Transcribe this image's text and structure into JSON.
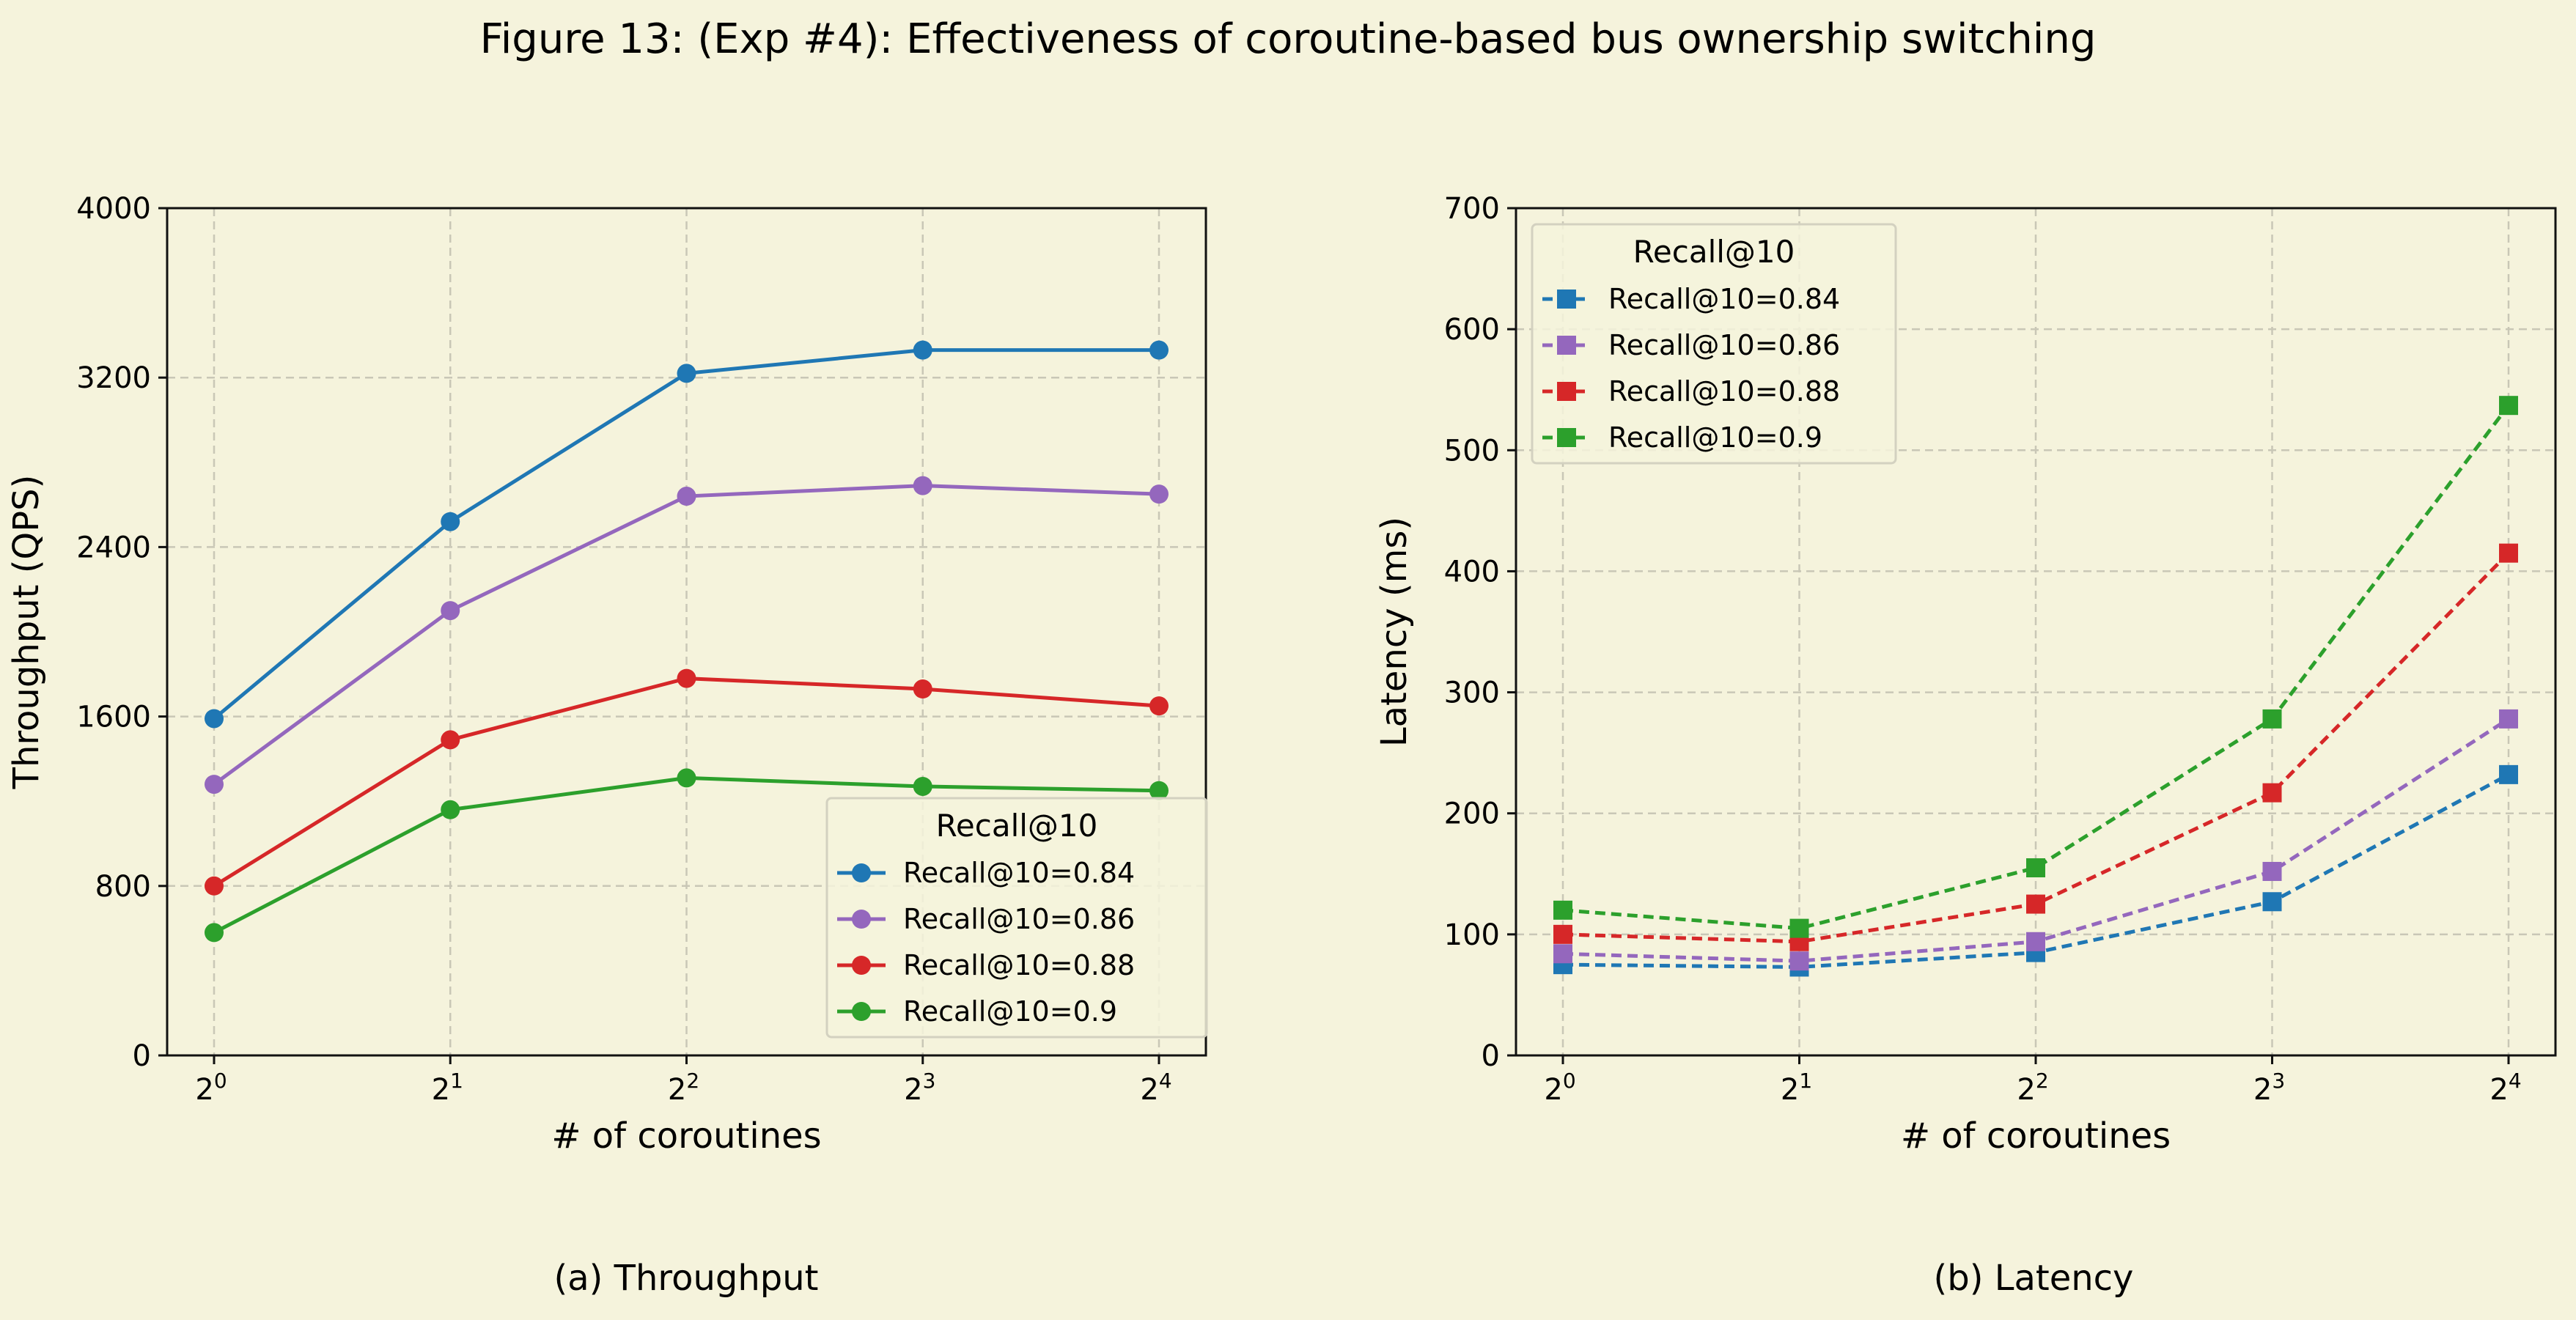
{
  "figure": {
    "title": "Figure 13: (Exp #4): Effectiveness of coroutine-based bus ownership switching",
    "background": "#f5f3dc"
  },
  "chart_data": [
    {
      "type": "line",
      "caption": "(a) Throughput",
      "xlabel": "# of coroutines",
      "ylabel": "Throughput (QPS)",
      "x_scale": "log2",
      "x": [
        1,
        2,
        4,
        8,
        16
      ],
      "x_tick_labels": [
        {
          "base": "2",
          "exp": "0"
        },
        {
          "base": "2",
          "exp": "1"
        },
        {
          "base": "2",
          "exp": "2"
        },
        {
          "base": "2",
          "exp": "3"
        },
        {
          "base": "2",
          "exp": "4"
        }
      ],
      "ylim": [
        0,
        4000
      ],
      "y_ticks": [
        0,
        800,
        1600,
        2400,
        3200,
        4000
      ],
      "grid": true,
      "marker": "circle",
      "line_style": "solid",
      "legend": {
        "title": "Recall@10",
        "position": "lower-right"
      },
      "series": [
        {
          "name": "Recall@10=0.84",
          "color": "#1f77b4",
          "values": [
            1590,
            2520,
            3220,
            3330,
            3330
          ]
        },
        {
          "name": "Recall@10=0.86",
          "color": "#9467bd",
          "values": [
            1280,
            2100,
            2640,
            2690,
            2650
          ]
        },
        {
          "name": "Recall@10=0.88",
          "color": "#d62728",
          "values": [
            800,
            1490,
            1780,
            1730,
            1650
          ]
        },
        {
          "name": "Recall@10=0.9",
          "color": "#2ca02c",
          "values": [
            580,
            1160,
            1310,
            1270,
            1250
          ]
        }
      ]
    },
    {
      "type": "line",
      "caption": "(b) Latency",
      "xlabel": "# of coroutines",
      "ylabel": "Latency (ms)",
      "x_scale": "log2",
      "x": [
        1,
        2,
        4,
        8,
        16
      ],
      "x_tick_labels": [
        {
          "base": "2",
          "exp": "0"
        },
        {
          "base": "2",
          "exp": "1"
        },
        {
          "base": "2",
          "exp": "2"
        },
        {
          "base": "2",
          "exp": "3"
        },
        {
          "base": "2",
          "exp": "4"
        }
      ],
      "ylim": [
        0,
        700
      ],
      "y_ticks": [
        0,
        100,
        200,
        300,
        400,
        500,
        600,
        700
      ],
      "grid": true,
      "marker": "square",
      "line_style": "dashed",
      "legend": {
        "title": "Recall@10",
        "position": "upper-left"
      },
      "series": [
        {
          "name": "Recall@10=0.84",
          "color": "#1f77b4",
          "values": [
            75,
            73,
            85,
            127,
            232
          ]
        },
        {
          "name": "Recall@10=0.86",
          "color": "#9467bd",
          "values": [
            84,
            78,
            94,
            152,
            278
          ]
        },
        {
          "name": "Recall@10=0.88",
          "color": "#d62728",
          "values": [
            100,
            94,
            125,
            217,
            415
          ]
        },
        {
          "name": "Recall@10=0.9",
          "color": "#2ca02c",
          "values": [
            120,
            105,
            155,
            278,
            537
          ]
        }
      ]
    }
  ]
}
